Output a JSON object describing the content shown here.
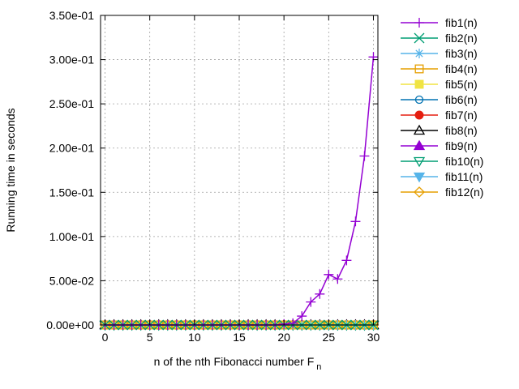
{
  "chart_data": {
    "type": "line",
    "xlabel": "n of the nth Fibonacci number F",
    "xlabel_subscript": "n",
    "ylabel": "Running time in seconds",
    "xlim": [
      -0.5,
      30.5
    ],
    "ylim": [
      0,
      0.35
    ],
    "xticks": [
      0,
      5,
      10,
      15,
      20,
      25,
      30
    ],
    "xtick_labels": [
      "0",
      "5",
      "10",
      "15",
      "20",
      "25",
      "30"
    ],
    "yticks": [
      0,
      0.05,
      0.1,
      0.15,
      0.2,
      0.25,
      0.3,
      0.35
    ],
    "ytick_labels": [
      "0.00e+00",
      "5.00e-02",
      "1.00e-01",
      "1.50e-01",
      "2.00e-01",
      "2.50e-01",
      "3.00e-01",
      "3.50e-01"
    ],
    "grid": true,
    "legend_position": "outside-right",
    "x": [
      0,
      1,
      2,
      3,
      4,
      5,
      6,
      7,
      8,
      9,
      10,
      11,
      12,
      13,
      14,
      15,
      16,
      17,
      18,
      19,
      20,
      21,
      22,
      23,
      24,
      25,
      26,
      27,
      28,
      29,
      30
    ],
    "series": [
      {
        "name": "fib1(n)",
        "color": "#9400d3",
        "marker": "plus",
        "values": [
          0,
          0,
          0,
          0,
          0,
          0,
          0,
          0,
          0,
          0,
          0,
          0,
          0,
          0,
          0,
          0,
          0,
          0,
          0,
          0,
          0.001,
          0.002,
          0.01,
          0.026,
          0.035,
          0.057,
          0.052,
          0.073,
          0.117,
          0.191,
          0.303
        ]
      },
      {
        "name": "fib2(n)",
        "color": "#009e73",
        "marker": "x",
        "values": [
          0,
          0,
          0,
          0,
          0,
          0,
          0,
          0,
          0,
          0,
          0,
          0,
          0,
          0,
          0,
          0,
          0,
          0,
          0,
          0,
          0,
          0,
          0,
          0,
          0,
          0,
          0,
          0,
          0,
          0,
          0
        ]
      },
      {
        "name": "fib3(n)",
        "color": "#56b4e9",
        "marker": "star",
        "values": [
          0,
          0,
          0,
          0,
          0,
          0,
          0,
          0,
          0,
          0,
          0,
          0,
          0,
          0,
          0,
          0,
          0,
          0,
          0,
          0,
          0,
          0,
          0,
          0,
          0,
          0,
          0,
          0,
          0,
          0,
          0
        ]
      },
      {
        "name": "fib4(n)",
        "color": "#e69f00",
        "marker": "square",
        "values": [
          0,
          0,
          0,
          0,
          0,
          0,
          0,
          0,
          0,
          0,
          0,
          0,
          0,
          0,
          0,
          0,
          0,
          0,
          0,
          0,
          0,
          0,
          0,
          0,
          0,
          0,
          0,
          0,
          0,
          0,
          0
        ]
      },
      {
        "name": "fib5(n)",
        "color": "#f0e442",
        "marker": "filled-square",
        "values": [
          0,
          0,
          0,
          0,
          0,
          0,
          0,
          0,
          0,
          0,
          0,
          0,
          0,
          0,
          0,
          0,
          0,
          0,
          0,
          0,
          0,
          0,
          0,
          0,
          0,
          0,
          0,
          0,
          0,
          0,
          0
        ]
      },
      {
        "name": "fib6(n)",
        "color": "#0072b2",
        "marker": "circle",
        "values": [
          0,
          0,
          0,
          0,
          0,
          0,
          0,
          0,
          0,
          0,
          0,
          0,
          0,
          0,
          0,
          0,
          0,
          0,
          0,
          0,
          0,
          0,
          0,
          0,
          0,
          0,
          0,
          0,
          0,
          0,
          0
        ]
      },
      {
        "name": "fib7(n)",
        "color": "#e51e10",
        "marker": "filled-circle",
        "values": [
          0,
          0,
          0,
          0,
          0,
          0,
          0,
          0,
          0,
          0,
          0,
          0,
          0,
          0,
          0,
          0,
          0,
          0,
          0,
          0,
          0,
          0,
          0,
          0,
          0,
          0,
          0,
          0,
          0,
          0,
          0
        ]
      },
      {
        "name": "fib8(n)",
        "color": "#000000",
        "marker": "triangle",
        "values": [
          0,
          0,
          0,
          0,
          0,
          0,
          0,
          0,
          0,
          0,
          0,
          0,
          0,
          0,
          0,
          0,
          0,
          0,
          0,
          0,
          0,
          0,
          0,
          0,
          0,
          0,
          0,
          0,
          0,
          0,
          0
        ]
      },
      {
        "name": "fib9(n)",
        "color": "#9400d3",
        "marker": "filled-triangle",
        "values": [
          0,
          0,
          0,
          0,
          0,
          0,
          0,
          0,
          0,
          0,
          0,
          0,
          0,
          0,
          0,
          0,
          0,
          0,
          0,
          0,
          0,
          0,
          0,
          0,
          0,
          0,
          0,
          0,
          0,
          0,
          0
        ]
      },
      {
        "name": "fib10(n)",
        "color": "#009e73",
        "marker": "triangle-down",
        "values": [
          0,
          0,
          0,
          0,
          0,
          0,
          0,
          0,
          0,
          0,
          0,
          0,
          0,
          0,
          0,
          0,
          0,
          0,
          0,
          0,
          0,
          0,
          0,
          0,
          0,
          0,
          0,
          0,
          0,
          0,
          0
        ]
      },
      {
        "name": "fib11(n)",
        "color": "#56b4e9",
        "marker": "filled-triangle-down",
        "values": [
          0,
          0,
          0,
          0,
          0,
          0,
          0,
          0,
          0,
          0,
          0,
          0,
          0,
          0,
          0,
          0,
          0,
          0,
          0,
          0,
          0,
          0,
          0,
          0,
          0,
          0,
          0,
          0,
          0,
          0,
          0
        ]
      },
      {
        "name": "fib12(n)",
        "color": "#e69f00",
        "marker": "diamond",
        "values": [
          0,
          0,
          0,
          0,
          0,
          0,
          0,
          0,
          0,
          0,
          0,
          0,
          0,
          0,
          0,
          0,
          0,
          0,
          0,
          0,
          0,
          0,
          0,
          0,
          0,
          0,
          0,
          0,
          0,
          0,
          0
        ]
      }
    ]
  }
}
